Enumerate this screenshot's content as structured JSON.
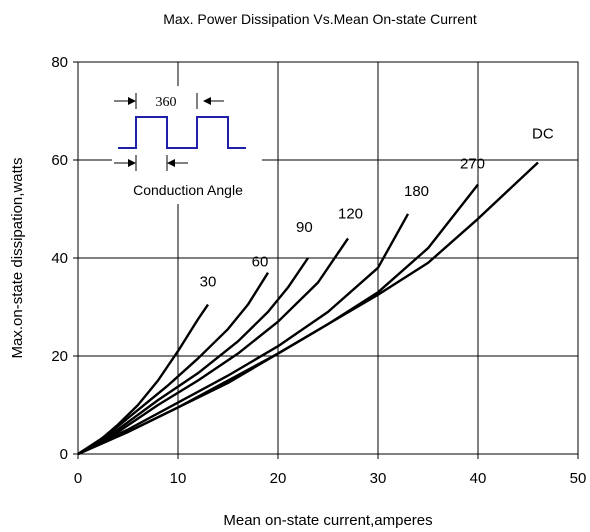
{
  "chart_data": {
    "type": "line",
    "title": "Max. Power Dissipation Vs.Mean On-state Current",
    "xlabel": "Mean on-state current,amperes",
    "ylabel": "Max.on-state dissipation,watts",
    "xlim": [
      0,
      50
    ],
    "ylim": [
      0,
      80
    ],
    "xticks": [
      "0",
      "10",
      "20",
      "30",
      "40",
      "50"
    ],
    "yticks": [
      "0",
      "20",
      "40",
      "60",
      "80"
    ],
    "grid": true,
    "series": [
      {
        "name": "30",
        "x": [
          0,
          2,
          4,
          6,
          8,
          10,
          12,
          13
        ],
        "y": [
          0,
          2.5,
          6,
          10,
          15,
          21,
          27.5,
          30.5
        ]
      },
      {
        "name": "60",
        "x": [
          0,
          3,
          6,
          9,
          12,
          15,
          17,
          19
        ],
        "y": [
          0,
          4,
          9,
          14,
          19.5,
          25.5,
          30.5,
          37
        ]
      },
      {
        "name": "90",
        "x": [
          0,
          4,
          8,
          12,
          16,
          19,
          21,
          23
        ],
        "y": [
          0,
          5,
          11,
          16.5,
          23,
          29,
          34,
          40
        ]
      },
      {
        "name": "120",
        "x": [
          0,
          4,
          8,
          12,
          16,
          20,
          24,
          27
        ],
        "y": [
          0,
          4.5,
          10,
          15,
          20.5,
          27,
          35,
          44
        ]
      },
      {
        "name": "180",
        "x": [
          0,
          5,
          10,
          15,
          20,
          25,
          30,
          33
        ],
        "y": [
          0,
          5,
          10.5,
          16,
          22,
          29,
          38,
          49
        ]
      },
      {
        "name": "270",
        "x": [
          0,
          5,
          10,
          15,
          20,
          25,
          30,
          35,
          40
        ],
        "y": [
          0,
          4.5,
          9.5,
          15,
          20.5,
          26.5,
          33,
          42,
          55
        ]
      },
      {
        "name": "DC",
        "x": [
          0,
          5,
          10,
          15,
          20,
          25,
          30,
          35,
          40,
          46
        ],
        "y": [
          0,
          4.5,
          9.5,
          14.5,
          20.5,
          26.5,
          32.5,
          39,
          48,
          59.5
        ]
      }
    ],
    "inset": {
      "period_label": "360",
      "caption": "Conduction Angle",
      "waveform_color": "#1f1fa8"
    }
  }
}
